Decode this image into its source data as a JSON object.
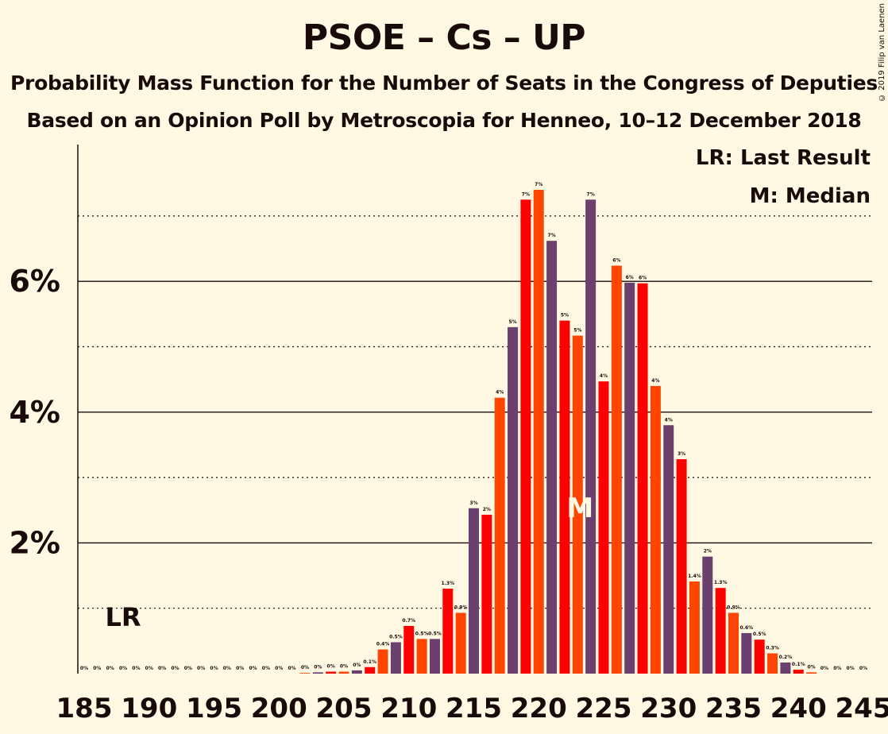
{
  "header": {
    "title": "PSOE – Cs – UP",
    "subtitle": "Probability Mass Function for the Number of Seats in the Congress of Deputies",
    "subtitle2": "Based on an Opinion Poll by Metroscopia for Henneo, 10–12 December 2018",
    "copyright": "© 2019 Filip van Laenen"
  },
  "legend": {
    "lr": "LR: Last Result",
    "m": "M: Median"
  },
  "chart_data": {
    "type": "bar",
    "x": [
      185,
      186,
      187,
      188,
      189,
      190,
      191,
      192,
      193,
      194,
      195,
      196,
      197,
      198,
      199,
      200,
      201,
      202,
      203,
      204,
      205,
      206,
      207,
      208,
      209,
      210,
      211,
      212,
      213,
      214,
      215,
      216,
      217,
      218,
      219,
      220,
      221,
      222,
      223,
      224,
      225,
      226,
      227,
      228,
      229,
      230,
      231,
      232,
      233,
      234,
      235,
      236,
      237,
      238,
      239,
      240,
      241,
      242,
      243,
      244,
      245
    ],
    "values": [
      0,
      0,
      0,
      0,
      0,
      0,
      0,
      0,
      0,
      0,
      0,
      0,
      0,
      0,
      0,
      0,
      0,
      0.01,
      0.02,
      0.03,
      0.03,
      0.05,
      0.1,
      0.37,
      0.48,
      0.73,
      0.53,
      0.53,
      1.3,
      0.93,
      2.53,
      2.43,
      4.22,
      5.3,
      7.25,
      7.4,
      6.62,
      5.4,
      5.17,
      7.25,
      4.47,
      6.24,
      5.98,
      5.97,
      4.4,
      3.8,
      3.28,
      1.41,
      1.79,
      1.31,
      0.93,
      0.62,
      0.52,
      0.31,
      0.17,
      0.06,
      0.02,
      0,
      0,
      0,
      0
    ],
    "data_labels": [
      "0%",
      "0%",
      "0%",
      "0%",
      "0%",
      "0%",
      "0%",
      "0%",
      "0%",
      "0%",
      "0%",
      "0%",
      "0%",
      "0%",
      "0%",
      "0%",
      "0%",
      "0%",
      "0%",
      "0%",
      "0%",
      "0%",
      "0.1%",
      "0.4%",
      "0.5%",
      "0.7%",
      "0.5%",
      "0.5%",
      "1.3%",
      "0.9%",
      "3%",
      "2%",
      "4%",
      "5%",
      "7%",
      "7%",
      "7%",
      "5%",
      "5%",
      "7%",
      "4%",
      "6%",
      "6%",
      "6%",
      "4%",
      "4%",
      "3%",
      "1.4%",
      "2%",
      "1.3%",
      "0.9%",
      "0.6%",
      "0.5%",
      "0.3%",
      "0.2%",
      "0.1%",
      "0%",
      "0%",
      "0%",
      "0%",
      "0%"
    ],
    "colors": [
      "#6b3f6e",
      "#ff0000",
      "#ff4500"
    ],
    "xticks": [
      185,
      190,
      195,
      200,
      205,
      210,
      215,
      220,
      225,
      230,
      235,
      240,
      245
    ],
    "yticks": [
      {
        "value": 2,
        "label": "2%"
      },
      {
        "value": 4,
        "label": "4%"
      },
      {
        "value": 6,
        "label": "6%"
      }
    ],
    "ylim": [
      0,
      8.1
    ],
    "last_result": {
      "seat": 188,
      "label": "LR"
    },
    "median": {
      "seat": 223,
      "label": "M"
    }
  }
}
